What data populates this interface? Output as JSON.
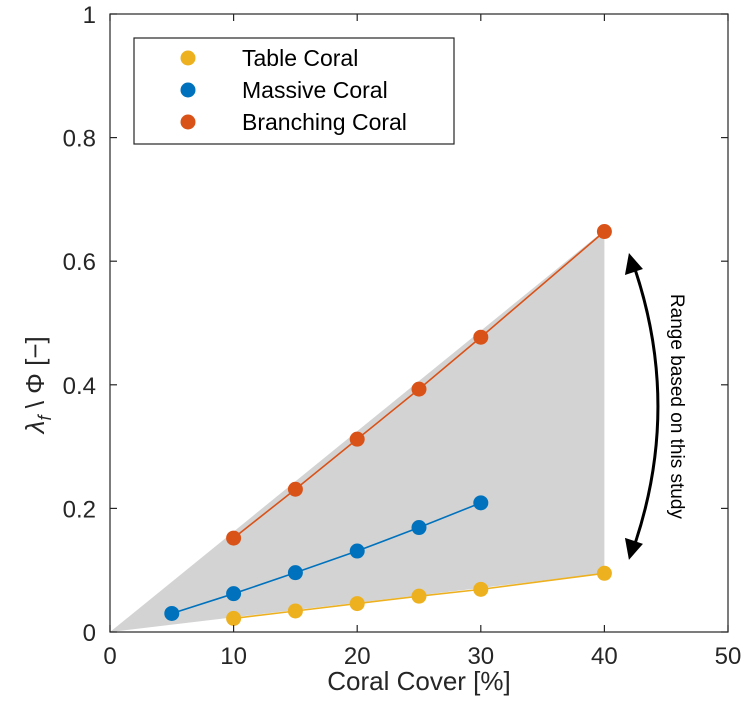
{
  "chart_data": {
    "type": "line",
    "title": "",
    "xlabel": "Coral Cover [%]",
    "ylabel": "λ_f \\ Φ [−]",
    "ylabel_main": "λ",
    "ylabel_sub": "f",
    "ylabel_rest": " \\ Φ [−]",
    "xlim": [
      0,
      50
    ],
    "ylim": [
      0,
      1
    ],
    "xticks": [
      0,
      10,
      20,
      30,
      40,
      50
    ],
    "yticks": [
      0,
      0.2,
      0.4,
      0.6,
      0.8,
      1
    ],
    "xtick_labels": [
      "0",
      "10",
      "20",
      "30",
      "40",
      "50"
    ],
    "ytick_labels": [
      "0",
      "0.2",
      "0.4",
      "0.6",
      "0.8",
      "1"
    ],
    "grid": false,
    "legend_position": "top-left",
    "shaded_region": {
      "color": "#d3d3d3",
      "polygon": [
        [
          0,
          0
        ],
        [
          40,
          0.65
        ],
        [
          40,
          0.095
        ]
      ]
    },
    "series": [
      {
        "name": "Table Coral",
        "color": "#EDB120",
        "x": [
          10,
          15,
          20,
          25,
          30,
          40
        ],
        "y": [
          0.022,
          0.034,
          0.046,
          0.058,
          0.069,
          0.095
        ]
      },
      {
        "name": "Massive Coral",
        "color": "#0072BD",
        "x": [
          5,
          10,
          15,
          20,
          25,
          30
        ],
        "y": [
          0.03,
          0.062,
          0.096,
          0.131,
          0.169,
          0.209
        ]
      },
      {
        "name": "Branching Coral",
        "color": "#D95319",
        "x": [
          10,
          15,
          20,
          25,
          30,
          40
        ],
        "y": [
          0.152,
          0.231,
          0.312,
          0.393,
          0.477,
          0.648
        ]
      }
    ],
    "annotation": {
      "text": "Range based on this study",
      "arrow_from": [
        41.5,
        0.61
      ],
      "arrow_to": [
        41.5,
        0.12
      ]
    }
  }
}
